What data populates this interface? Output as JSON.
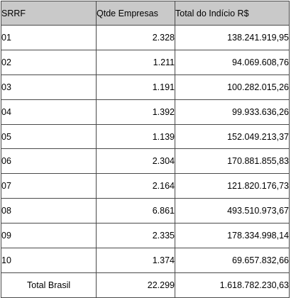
{
  "table": {
    "headers": [
      "SRRF",
      "Qtde Empresas",
      "Total do Indício R$"
    ],
    "rows": [
      [
        "01",
        "2.328",
        "138.241.919,95"
      ],
      [
        "02",
        "1.211",
        "94.069.608,76"
      ],
      [
        "03",
        "1.191",
        "100.282.015,26"
      ],
      [
        "04",
        "1.392",
        "99.933.636,26"
      ],
      [
        "05",
        "1.139",
        "152.049.213,37"
      ],
      [
        "06",
        "2.304",
        "170.881.855,83"
      ],
      [
        "07",
        "2.164",
        "121.820.176,73"
      ],
      [
        "08",
        "6.861",
        "493.510.973,67"
      ],
      [
        "09",
        "2.335",
        "178.334.998,14"
      ],
      [
        "10",
        "1.374",
        "69.657.832,66"
      ]
    ],
    "total_row": [
      "Total Brasil",
      "22.299",
      "1.618.782.230,63"
    ]
  },
  "colors": {
    "header_background": "#c9c9c9",
    "border": "#4a4a4a"
  }
}
